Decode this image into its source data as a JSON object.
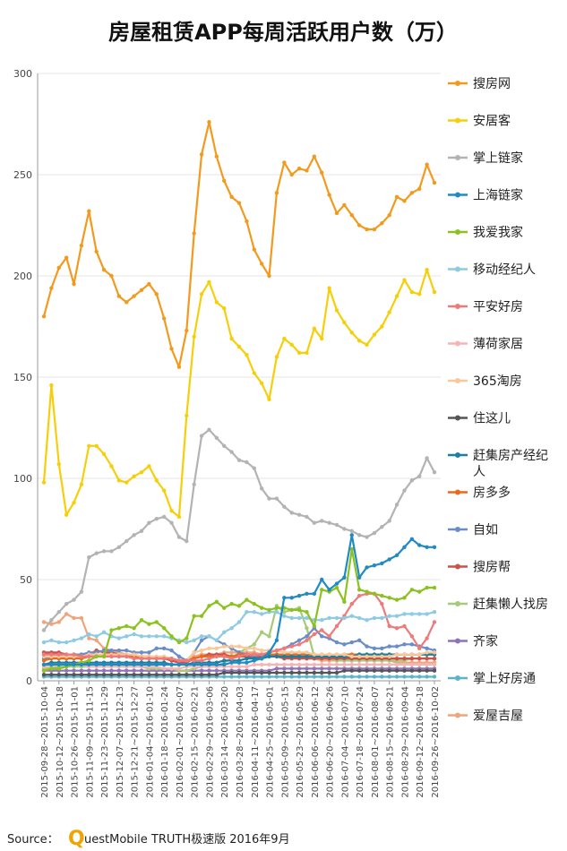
{
  "title": "房屋租赁APP每周活跃用户数（万）",
  "source": {
    "prefix": "Source：",
    "q": "Q",
    "text": "uestMobile TRUTH极速版 2016年9月"
  },
  "chart_data": {
    "type": "line",
    "title": "房屋租赁APP每周活跃用户数（万）",
    "ylabel": "",
    "xlabel": "",
    "ylim": [
      0,
      300
    ],
    "yticks": [
      0,
      50,
      100,
      150,
      200,
      250,
      300
    ],
    "grid": true,
    "legend_position": "right",
    "x": [
      "2015-09-28~2015-10-04",
      "2015-10-05~2015-10-11",
      "2015-10-12~2015-10-18",
      "2015-10-19~2015-10-25",
      "2015-10-26~2015-11-01",
      "2015-11-02~2015-11-08",
      "2015-11-09~2015-11-15",
      "2015-11-16~2015-11-22",
      "2015-11-23~2015-11-29",
      "2015-11-30~2015-12-06",
      "2015-12-07~2015-12-13",
      "2015-12-14~2015-12-20",
      "2015-12-21~2015-12-27",
      "2015-12-28~2016-01-03",
      "2016-01-04~2016-01-10",
      "2016-01-11~2016-01-17",
      "2016-01-18~2016-01-24",
      "2016-01-25~2016-01-31",
      "2016-02-01~2016-02-07",
      "2016-02-08~2016-02-14",
      "2016-02-15~2016-02-21",
      "2016-02-22~2016-02-28",
      "2016-02-29~2016-03-06",
      "2016-03-07~2016-03-13",
      "2016-03-14~2016-03-20",
      "2016-03-21~2016-03-27",
      "2016-03-28~2016-04-03",
      "2016-04-04~2016-04-10",
      "2016-04-11~2016-04-17",
      "2016-04-18~2016-04-24",
      "2016-04-25~2016-05-01",
      "2016-05-02~2016-05-08",
      "2016-05-09~2016-05-15",
      "2016-05-16~2016-05-22",
      "2016-05-23~2016-05-29",
      "2016-05-30~2016-06-05",
      "2016-06-06~2016-06-12",
      "2016-06-13~2016-06-19",
      "2016-06-20~2016-06-26",
      "2016-06-27~2016-07-03",
      "2016-07-04~2016-07-10",
      "2016-07-11~2016-07-17",
      "2016-07-18~2016-07-24",
      "2016-07-25~2016-07-31",
      "2016-08-01~2016-08-07",
      "2016-08-08~2016-08-14",
      "2016-08-15~2016-08-21",
      "2016-08-22~2016-08-28",
      "2016-08-29~2016-09-04",
      "2016-09-05~2016-09-11",
      "2016-09-12~2016-09-18",
      "2016-09-19~2016-09-25",
      "2016-09-26~2016-10-02"
    ],
    "x_tick_labels": [
      "2015-09-28~2015-10-04",
      "2015-10-12~2015-10-18",
      "2015-10-26~2015-11-01",
      "2015-11-09~2015-11-15",
      "2015-11-23~2015-11-29",
      "2015-12-07~2015-12-13",
      "2015-12-21~2015-12-27",
      "2016-01-04~2016-01-10",
      "2016-01-18~2016-01-24",
      "2016-02-01~2016-02-07",
      "2016-02-15~2016-02-21",
      "2016-02-29~2016-03-06",
      "2016-03-14~2016-03-20",
      "2016-03-28~2016-04-03",
      "2016-04-11~2016-04-17",
      "2016-04-25~2016-05-01",
      "2016-05-09~2016-05-15",
      "2016-05-23~2016-05-29",
      "2016-06-06~2016-06-12",
      "2016-06-20~2016-06-26",
      "2016-07-04~2016-07-10",
      "2016-07-18~2016-07-24",
      "2016-08-01~2016-08-07",
      "2016-08-15~2016-08-21",
      "2016-08-29~2016-09-04",
      "2016-09-12~2016-09-18",
      "2016-09-26~2016-10-02"
    ],
    "series": [
      {
        "name": "搜房网",
        "color": "#f39a1e",
        "values": [
          180,
          194,
          204,
          209,
          196,
          215,
          232,
          212,
          203,
          200,
          190,
          187,
          190,
          193,
          196,
          191,
          179,
          164,
          155,
          173,
          221,
          260,
          276,
          259,
          247,
          239,
          236,
          227,
          213,
          206,
          200,
          241,
          256,
          250,
          253,
          252,
          259,
          251,
          240,
          231,
          235,
          230,
          225,
          223,
          223,
          226,
          230,
          239,
          237,
          241,
          243,
          255,
          246
        ]
      },
      {
        "name": "安居客",
        "color": "#f6cf0a",
        "values": [
          98,
          146,
          107,
          82,
          88,
          97,
          116,
          116,
          112,
          106,
          99,
          98,
          101,
          103,
          106,
          99,
          94,
          84,
          81,
          131,
          170,
          191,
          197,
          187,
          184,
          169,
          165,
          161,
          152,
          147,
          139,
          160,
          169,
          166,
          162,
          162,
          174,
          169,
          194,
          183,
          177,
          172,
          168,
          166,
          171,
          175,
          182,
          190,
          198,
          192,
          191,
          203,
          192
        ]
      },
      {
        "name": "掌上链家",
        "color": "#b3b3b3",
        "values": [
          25,
          30,
          34,
          38,
          40,
          44,
          61,
          63,
          64,
          64,
          66,
          69,
          72,
          74,
          78,
          80,
          81,
          78,
          71,
          69,
          97,
          121,
          124,
          120,
          116,
          113,
          109,
          108,
          105,
          95,
          90,
          90,
          86,
          83,
          82,
          81,
          78,
          79,
          78,
          77,
          75,
          74,
          72,
          71,
          73,
          76,
          79,
          87,
          94,
          99,
          101,
          110,
          103
        ]
      },
      {
        "name": "上海链家",
        "color": "#1f8bc2",
        "values": [
          8,
          8,
          8,
          8,
          8,
          8,
          8,
          8,
          8,
          8,
          8,
          8,
          8,
          8,
          8,
          8,
          8,
          8,
          8,
          8,
          8,
          8,
          8,
          8,
          8,
          9,
          9,
          9,
          10,
          11,
          14,
          20,
          41,
          41,
          42,
          43,
          43,
          50,
          45,
          48,
          51,
          72,
          51,
          56,
          57,
          58,
          60,
          62,
          66,
          70,
          67,
          66,
          66
        ]
      },
      {
        "name": "我爱我家",
        "color": "#8cc21f",
        "values": [
          5,
          6,
          6,
          7,
          8,
          9,
          10,
          12,
          12,
          25,
          26,
          27,
          26,
          30,
          28,
          29,
          26,
          22,
          19,
          21,
          32,
          32,
          37,
          39,
          36,
          38,
          37,
          40,
          38,
          36,
          35,
          36,
          36,
          35,
          35,
          34,
          27,
          45,
          44,
          46,
          39,
          65,
          45,
          44,
          43,
          42,
          41,
          40,
          41,
          45,
          44,
          46,
          46
        ]
      },
      {
        "name": "移动经纪人",
        "color": "#8ecbe3",
        "values": [
          19,
          20,
          19,
          19,
          20,
          21,
          23,
          22,
          24,
          22,
          21,
          22,
          23,
          22,
          22,
          22,
          22,
          21,
          20,
          19,
          20,
          22,
          22,
          20,
          24,
          26,
          29,
          34,
          34,
          33,
          34,
          34,
          32,
          31,
          31,
          31,
          30,
          30,
          31,
          31,
          31,
          32,
          31,
          30,
          31,
          31,
          32,
          32,
          33,
          33,
          33,
          33,
          34
        ]
      },
      {
        "name": "平安好房",
        "color": "#ee7a7b",
        "values": [
          13,
          13,
          13,
          13,
          13,
          12,
          12,
          12,
          12,
          12,
          12,
          12,
          11,
          11,
          11,
          11,
          11,
          11,
          10,
          10,
          10,
          10,
          11,
          12,
          12,
          11,
          12,
          13,
          13,
          13,
          14,
          15,
          16,
          17,
          18,
          20,
          23,
          25,
          22,
          27,
          32,
          38,
          42,
          43,
          43,
          38,
          27,
          26,
          27,
          22,
          16,
          21,
          29
        ]
      },
      {
        "name": "薄荷家居",
        "color": "#f5b5b6",
        "values": [
          7,
          7,
          8,
          8,
          8,
          8,
          7,
          7,
          7,
          7,
          7,
          7,
          7,
          7,
          7,
          7,
          6,
          6,
          6,
          7,
          7,
          7,
          7,
          7,
          7,
          7,
          7,
          7,
          8,
          8,
          8,
          8,
          8,
          8,
          8,
          8,
          8,
          8,
          8,
          8,
          8,
          8,
          8,
          8,
          8,
          8,
          8,
          8,
          8,
          8,
          8,
          8,
          8
        ]
      },
      {
        "name": "365淘房",
        "color": "#f7c89a",
        "values": [
          12,
          12,
          12,
          12,
          12,
          12,
          13,
          13,
          13,
          13,
          13,
          13,
          13,
          12,
          12,
          12,
          12,
          11,
          10,
          10,
          14,
          15,
          16,
          16,
          17,
          17,
          17,
          16,
          16,
          15,
          15,
          15,
          14,
          14,
          14,
          14,
          13,
          13,
          13,
          13,
          13,
          12,
          12,
          12,
          12,
          12,
          12,
          13,
          13,
          13,
          13,
          14,
          14
        ]
      },
      {
        "name": "住这儿",
        "color": "#555555",
        "values": [
          3,
          3,
          3,
          3,
          3,
          3,
          3,
          3,
          3,
          3,
          3,
          3,
          3,
          3,
          3,
          3,
          3,
          3,
          3,
          3,
          3,
          3,
          3,
          3,
          4,
          4,
          4,
          4,
          4,
          4,
          4,
          4,
          4,
          4,
          4,
          4,
          4,
          4,
          4,
          4,
          5,
          5,
          5,
          5,
          5,
          5,
          5,
          5,
          5,
          5,
          5,
          5,
          5
        ]
      },
      {
        "name": "赶集房产经纪人",
        "color": "#1a7fa0",
        "values": [
          8,
          9,
          9,
          9,
          9,
          9,
          9,
          9,
          9,
          9,
          9,
          9,
          9,
          9,
          9,
          9,
          9,
          8,
          8,
          8,
          9,
          9,
          9,
          9,
          10,
          10,
          10,
          11,
          11,
          11,
          12,
          12,
          12,
          12,
          12,
          12,
          12,
          12,
          12,
          12,
          12,
          12,
          13,
          13,
          13,
          13,
          13,
          13,
          13,
          13,
          13,
          13,
          13
        ]
      },
      {
        "name": "房多多",
        "color": "#e86a1f",
        "values": [
          10,
          11,
          11,
          11,
          11,
          11,
          12,
          12,
          12,
          12,
          12,
          12,
          12,
          12,
          12,
          11,
          11,
          11,
          10,
          10,
          11,
          12,
          12,
          12,
          12,
          12,
          13,
          13,
          13,
          13,
          13,
          13,
          13,
          13,
          13,
          13,
          13,
          13,
          13,
          13,
          13,
          13,
          13,
          13,
          13,
          13,
          13,
          13,
          13,
          13,
          13,
          13,
          13
        ]
      },
      {
        "name": "自如",
        "color": "#6a8cc8",
        "values": [
          11,
          12,
          12,
          12,
          13,
          13,
          14,
          14,
          15,
          15,
          15,
          15,
          14,
          14,
          14,
          16,
          16,
          15,
          12,
          10,
          14,
          20,
          22,
          20,
          18,
          16,
          14,
          13,
          12,
          13,
          14,
          15,
          16,
          18,
          20,
          22,
          26,
          22,
          21,
          19,
          18,
          19,
          20,
          17,
          16,
          16,
          17,
          17,
          18,
          18,
          17,
          16,
          15
        ]
      },
      {
        "name": "搜房帮",
        "color": "#c9524a",
        "values": [
          14,
          14,
          14,
          13,
          13,
          13,
          13,
          15,
          14,
          14,
          13,
          12,
          12,
          11,
          11,
          11,
          11,
          10,
          9,
          9,
          11,
          12,
          13,
          13,
          13,
          12,
          12,
          12,
          12,
          12,
          12,
          12,
          11,
          11,
          11,
          11,
          11,
          11,
          11,
          11,
          11,
          11,
          11,
          11,
          11,
          11,
          11,
          11,
          11,
          11,
          11,
          11,
          11
        ]
      },
      {
        "name": "赶集懒人找房",
        "color": "#a7c97a",
        "values": [
          6,
          6,
          7,
          7,
          7,
          7,
          7,
          7,
          7,
          7,
          7,
          7,
          7,
          7,
          6,
          6,
          6,
          6,
          5,
          5,
          6,
          7,
          7,
          7,
          9,
          11,
          14,
          16,
          18,
          24,
          22,
          37,
          34,
          35,
          36,
          26,
          12,
          12,
          11,
          10,
          10,
          10,
          10,
          10,
          10,
          10,
          10,
          10,
          10,
          11,
          11,
          11,
          11
        ]
      },
      {
        "name": "齐家",
        "color": "#8f73b8",
        "values": [
          5,
          5,
          5,
          5,
          5,
          5,
          5,
          5,
          5,
          5,
          5,
          5,
          5,
          5,
          5,
          5,
          5,
          5,
          5,
          5,
          5,
          5,
          5,
          5,
          5,
          5,
          5,
          5,
          5,
          5,
          5,
          6,
          6,
          6,
          6,
          6,
          6,
          6,
          6,
          6,
          6,
          6,
          6,
          6,
          6,
          6,
          6,
          6,
          6,
          6,
          6,
          6,
          6
        ]
      },
      {
        "name": "掌上好房通",
        "color": "#5fb3c9",
        "values": [
          2,
          2,
          2,
          2,
          2,
          2,
          2,
          2,
          2,
          2,
          2,
          2,
          2,
          2,
          2,
          2,
          2,
          2,
          2,
          2,
          2,
          2,
          2,
          2,
          2,
          2,
          2,
          2,
          2,
          2,
          2,
          2,
          2,
          2,
          2,
          2,
          2,
          2,
          2,
          2,
          2,
          2,
          2,
          2,
          2,
          2,
          2,
          2,
          2,
          2,
          2,
          2,
          2
        ]
      },
      {
        "name": "爱屋吉屋",
        "color": "#f0a47a",
        "values": [
          29,
          28,
          29,
          33,
          31,
          31,
          21,
          20,
          16,
          15,
          14,
          13,
          13,
          12,
          12,
          11,
          11,
          11,
          10,
          10,
          12,
          13,
          13,
          13,
          14,
          14,
          14,
          14,
          14,
          13,
          13,
          12,
          12,
          12,
          12,
          11,
          11,
          10,
          10,
          10,
          10,
          10,
          10,
          10,
          10,
          10,
          10,
          9,
          9,
          9,
          9,
          9,
          9
        ]
      }
    ]
  }
}
